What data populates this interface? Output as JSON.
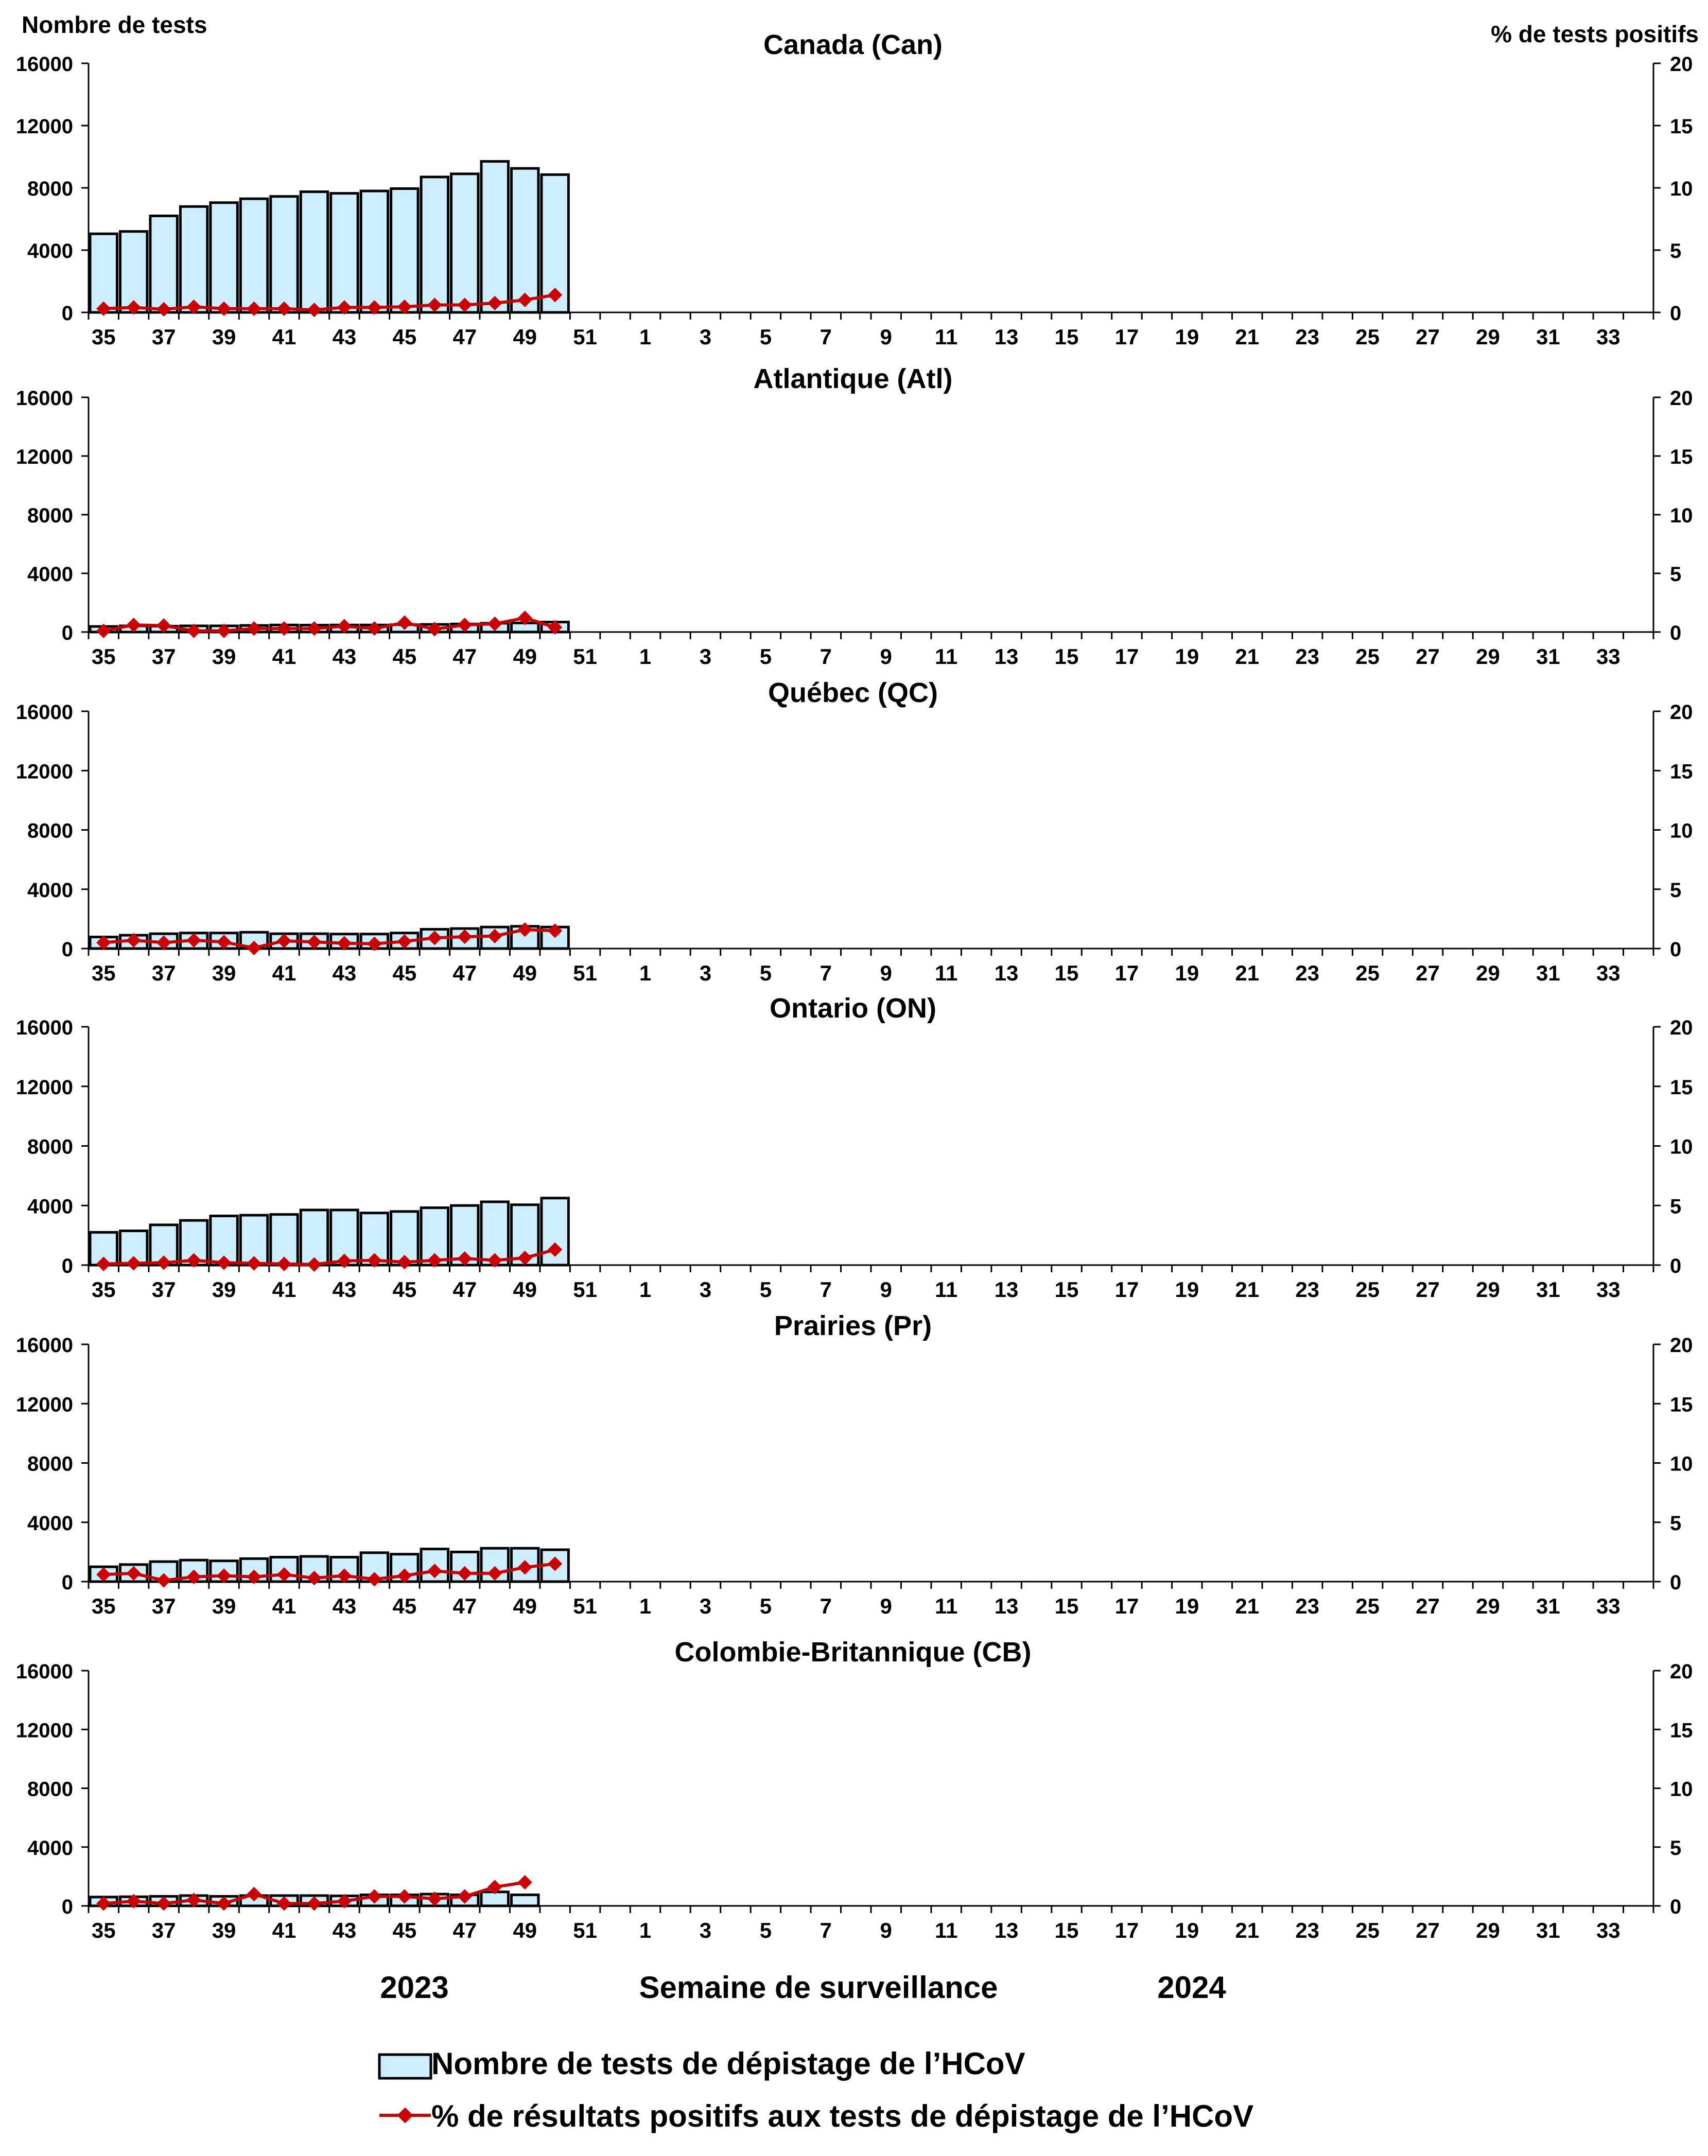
{
  "page": {
    "left_axis_title": "Nombre de tests",
    "right_axis_title": "% de tests positifs",
    "x_axis_title": "Semaine de surveillance",
    "year_left": "2023",
    "year_right": "2024",
    "legend": {
      "bars_label": "Nombre de tests de dépistage de l’HCoV",
      "line_label": "% de résultats positifs aux tests de dépistage de l’HCoV"
    },
    "colors": {
      "bar_fill": "#cceeff",
      "bar_stroke": "#000000",
      "line": "#cc0000",
      "axis": "#000000"
    }
  },
  "chart_data": [
    {
      "type": "bar",
      "title": "Canada (Can)",
      "weeks": [
        "35",
        "36",
        "37",
        "38",
        "39",
        "40",
        "41",
        "42",
        "43",
        "44",
        "45",
        "46",
        "47",
        "48",
        "49",
        "50",
        "51",
        "52",
        "1",
        "2",
        "3",
        "4",
        "5",
        "6",
        "7",
        "8",
        "9",
        "10",
        "11",
        "12",
        "13",
        "14",
        "15",
        "16",
        "17",
        "18",
        "19",
        "20",
        "21",
        "22",
        "23",
        "24",
        "25",
        "26",
        "27",
        "28",
        "29",
        "30",
        "31",
        "32",
        "33",
        "34"
      ],
      "x_tick_labels": [
        "35",
        "37",
        "39",
        "41",
        "43",
        "45",
        "47",
        "49",
        "51",
        "1",
        "3",
        "5",
        "7",
        "9",
        "11",
        "13",
        "15",
        "17",
        "19",
        "21",
        "23",
        "25",
        "27",
        "29",
        "31",
        "33"
      ],
      "y_left_ticks": [
        "0",
        "4000",
        "8000",
        "12000",
        "16000"
      ],
      "y_right_ticks": [
        "0",
        "5",
        "10",
        "15",
        "20"
      ],
      "ylim_left": [
        0,
        16000
      ],
      "ylim_right": [
        0,
        20
      ],
      "series": [
        {
          "name": "Nombre de tests de dépistage de l’HCoV",
          "axis": "left",
          "values": [
            5050,
            5200,
            6200,
            6800,
            7050,
            7300,
            7450,
            7750,
            7650,
            7800,
            7950,
            8700,
            8900,
            9700,
            9250,
            8850
          ]
        },
        {
          "name": "% de résultats positifs aux tests de dépistage de l’HCoV",
          "axis": "right",
          "values": [
            0.3,
            0.4,
            0.25,
            0.45,
            0.3,
            0.3,
            0.3,
            0.2,
            0.4,
            0.4,
            0.45,
            0.6,
            0.6,
            0.75,
            1.0,
            1.4
          ]
        }
      ]
    },
    {
      "type": "bar",
      "title": "Atlantique (Atl)",
      "weeks": [
        "35",
        "36",
        "37",
        "38",
        "39",
        "40",
        "41",
        "42",
        "43",
        "44",
        "45",
        "46",
        "47",
        "48",
        "49",
        "50",
        "51",
        "52",
        "1",
        "2",
        "3",
        "4",
        "5",
        "6",
        "7",
        "8",
        "9",
        "10",
        "11",
        "12",
        "13",
        "14",
        "15",
        "16",
        "17",
        "18",
        "19",
        "20",
        "21",
        "22",
        "23",
        "24",
        "25",
        "26",
        "27",
        "28",
        "29",
        "30",
        "31",
        "32",
        "33",
        "34"
      ],
      "x_tick_labels": [
        "35",
        "37",
        "39",
        "41",
        "43",
        "45",
        "47",
        "49",
        "51",
        "1",
        "3",
        "5",
        "7",
        "9",
        "11",
        "13",
        "15",
        "17",
        "19",
        "21",
        "23",
        "25",
        "27",
        "29",
        "31",
        "33"
      ],
      "y_left_ticks": [
        "0",
        "4000",
        "8000",
        "12000",
        "16000"
      ],
      "y_right_ticks": [
        "0",
        "5",
        "10",
        "15",
        "20"
      ],
      "ylim_left": [
        0,
        16000
      ],
      "ylim_right": [
        0,
        20
      ],
      "series": [
        {
          "name": "Nombre de tests de dépistage de l’HCoV",
          "axis": "left",
          "values": [
            380,
            420,
            400,
            420,
            420,
            450,
            480,
            470,
            480,
            480,
            500,
            520,
            550,
            600,
            620,
            680
          ]
        },
        {
          "name": "% de résultats positifs aux tests de dépistage de l’HCoV",
          "axis": "right",
          "values": [
            0.1,
            0.6,
            0.55,
            0.1,
            0.1,
            0.3,
            0.3,
            0.3,
            0.5,
            0.3,
            0.8,
            0.25,
            0.6,
            0.7,
            1.2,
            0.4
          ]
        }
      ]
    },
    {
      "type": "bar",
      "title": "Québec (QC)",
      "weeks": [
        "35",
        "36",
        "37",
        "38",
        "39",
        "40",
        "41",
        "42",
        "43",
        "44",
        "45",
        "46",
        "47",
        "48",
        "49",
        "50",
        "51",
        "52",
        "1",
        "2",
        "3",
        "4",
        "5",
        "6",
        "7",
        "8",
        "9",
        "10",
        "11",
        "12",
        "13",
        "14",
        "15",
        "16",
        "17",
        "18",
        "19",
        "20",
        "21",
        "22",
        "23",
        "24",
        "25",
        "26",
        "27",
        "28",
        "29",
        "30",
        "31",
        "32",
        "33",
        "34"
      ],
      "x_tick_labels": [
        "35",
        "37",
        "39",
        "41",
        "43",
        "45",
        "47",
        "49",
        "51",
        "1",
        "3",
        "5",
        "7",
        "9",
        "11",
        "13",
        "15",
        "17",
        "19",
        "21",
        "23",
        "25",
        "27",
        "29",
        "31",
        "33"
      ],
      "y_left_ticks": [
        "0",
        "4000",
        "8000",
        "12000",
        "16000"
      ],
      "y_right_ticks": [
        "0",
        "5",
        "10",
        "15",
        "20"
      ],
      "ylim_left": [
        0,
        16000
      ],
      "ylim_right": [
        0,
        20
      ],
      "series": [
        {
          "name": "Nombre de tests de dépistage de l’HCoV",
          "axis": "left",
          "values": [
            780,
            900,
            1000,
            1050,
            1050,
            1100,
            1000,
            1000,
            980,
            980,
            1050,
            1300,
            1350,
            1450,
            1500,
            1450
          ]
        },
        {
          "name": "% de résultats positifs aux tests de dépistage de l’HCoV",
          "axis": "right",
          "values": [
            0.5,
            0.7,
            0.5,
            0.7,
            0.55,
            0.05,
            0.65,
            0.55,
            0.45,
            0.4,
            0.6,
            0.9,
            1.0,
            1.05,
            1.6,
            1.5
          ]
        }
      ]
    },
    {
      "type": "bar",
      "title": "Ontario (ON)",
      "weeks": [
        "35",
        "36",
        "37",
        "38",
        "39",
        "40",
        "41",
        "42",
        "43",
        "44",
        "45",
        "46",
        "47",
        "48",
        "49",
        "50",
        "51",
        "52",
        "1",
        "2",
        "3",
        "4",
        "5",
        "6",
        "7",
        "8",
        "9",
        "10",
        "11",
        "12",
        "13",
        "14",
        "15",
        "16",
        "17",
        "18",
        "19",
        "20",
        "21",
        "22",
        "23",
        "24",
        "25",
        "26",
        "27",
        "28",
        "29",
        "30",
        "31",
        "32",
        "33",
        "34"
      ],
      "x_tick_labels": [
        "35",
        "37",
        "39",
        "41",
        "43",
        "45",
        "47",
        "49",
        "51",
        "1",
        "3",
        "5",
        "7",
        "9",
        "11",
        "13",
        "15",
        "17",
        "19",
        "21",
        "23",
        "25",
        "27",
        "29",
        "31",
        "33"
      ],
      "y_left_ticks": [
        "0",
        "4000",
        "8000",
        "12000",
        "16000"
      ],
      "y_right_ticks": [
        "0",
        "5",
        "10",
        "15",
        "20"
      ],
      "ylim_left": [
        0,
        16000
      ],
      "ylim_right": [
        0,
        20
      ],
      "series": [
        {
          "name": "Nombre de tests de dépistage de l’HCoV",
          "axis": "left",
          "values": [
            2200,
            2300,
            2700,
            3000,
            3300,
            3350,
            3400,
            3700,
            3700,
            3500,
            3600,
            3850,
            4000,
            4250,
            4050,
            4500
          ]
        },
        {
          "name": "% de résultats positifs aux tests de dépistage de l’HCoV",
          "axis": "right",
          "values": [
            0.1,
            0.15,
            0.2,
            0.4,
            0.2,
            0.15,
            0.1,
            0.05,
            0.35,
            0.4,
            0.25,
            0.4,
            0.55,
            0.4,
            0.6,
            1.3
          ]
        }
      ]
    },
    {
      "type": "bar",
      "title": "Prairies (Pr)",
      "weeks": [
        "35",
        "36",
        "37",
        "38",
        "39",
        "40",
        "41",
        "42",
        "43",
        "44",
        "45",
        "46",
        "47",
        "48",
        "49",
        "50",
        "51",
        "52",
        "1",
        "2",
        "3",
        "4",
        "5",
        "6",
        "7",
        "8",
        "9",
        "10",
        "11",
        "12",
        "13",
        "14",
        "15",
        "16",
        "17",
        "18",
        "19",
        "20",
        "21",
        "22",
        "23",
        "24",
        "25",
        "26",
        "27",
        "28",
        "29",
        "30",
        "31",
        "32",
        "33",
        "34"
      ],
      "x_tick_labels": [
        "35",
        "37",
        "39",
        "41",
        "43",
        "45",
        "47",
        "49",
        "51",
        "1",
        "3",
        "5",
        "7",
        "9",
        "11",
        "13",
        "15",
        "17",
        "19",
        "21",
        "23",
        "25",
        "27",
        "29",
        "31",
        "33"
      ],
      "y_left_ticks": [
        "0",
        "4000",
        "8000",
        "12000",
        "16000"
      ],
      "y_right_ticks": [
        "0",
        "5",
        "10",
        "15",
        "20"
      ],
      "ylim_left": [
        0,
        16000
      ],
      "ylim_right": [
        0,
        20
      ],
      "series": [
        {
          "name": "Nombre de tests de dépistage de l’HCoV",
          "axis": "left",
          "values": [
            1000,
            1150,
            1350,
            1450,
            1400,
            1550,
            1650,
            1700,
            1650,
            1950,
            1850,
            2200,
            2000,
            2250,
            2250,
            2150
          ]
        },
        {
          "name": "% de résultats positifs aux tests de dépistage de l’HCoV",
          "axis": "right",
          "values": [
            0.6,
            0.7,
            0.1,
            0.4,
            0.5,
            0.4,
            0.6,
            0.3,
            0.5,
            0.2,
            0.5,
            0.9,
            0.7,
            0.7,
            1.2,
            1.5
          ]
        }
      ]
    },
    {
      "type": "bar",
      "title": "Colombie-Britannique (CB)",
      "weeks": [
        "35",
        "36",
        "37",
        "38",
        "39",
        "40",
        "41",
        "42",
        "43",
        "44",
        "45",
        "46",
        "47",
        "48",
        "49",
        "50",
        "51",
        "52",
        "1",
        "2",
        "3",
        "4",
        "5",
        "6",
        "7",
        "8",
        "9",
        "10",
        "11",
        "12",
        "13",
        "14",
        "15",
        "16",
        "17",
        "18",
        "19",
        "20",
        "21",
        "22",
        "23",
        "24",
        "25",
        "26",
        "27",
        "28",
        "29",
        "30",
        "31",
        "32",
        "33",
        "34"
      ],
      "x_tick_labels": [
        "35",
        "37",
        "39",
        "41",
        "43",
        "45",
        "47",
        "49",
        "51",
        "1",
        "3",
        "5",
        "7",
        "9",
        "11",
        "13",
        "15",
        "17",
        "19",
        "21",
        "23",
        "25",
        "27",
        "29",
        "31",
        "33"
      ],
      "y_left_ticks": [
        "0",
        "4000",
        "8000",
        "12000",
        "16000"
      ],
      "y_right_ticks": [
        "0",
        "5",
        "10",
        "15",
        "20"
      ],
      "ylim_left": [
        0,
        16000
      ],
      "ylim_right": [
        0,
        20
      ],
      "series": [
        {
          "name": "Nombre de tests de dépistage de l’HCoV",
          "axis": "left",
          "values": [
            600,
            620,
            650,
            700,
            650,
            700,
            700,
            700,
            680,
            750,
            750,
            800,
            750,
            950,
            750
          ]
        },
        {
          "name": "% de résultats positifs aux tests de dépistage de l’HCoV",
          "axis": "right",
          "values": [
            0.2,
            0.4,
            0.2,
            0.5,
            0.2,
            1.0,
            0.2,
            0.2,
            0.4,
            0.8,
            0.8,
            0.6,
            0.8,
            1.6,
            2.0
          ]
        }
      ]
    }
  ]
}
